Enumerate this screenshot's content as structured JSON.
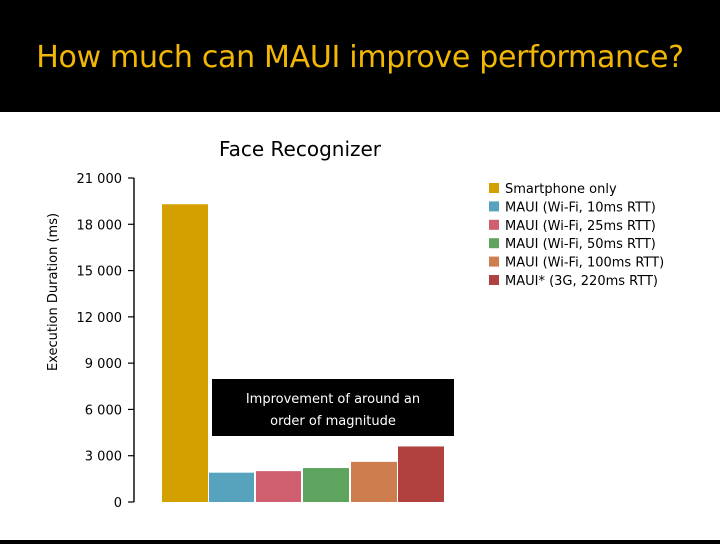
{
  "slide": {
    "title": "How much can MAUI improve performance?"
  },
  "colors": {
    "title": "#F2B705",
    "background": "#000000",
    "chart_background": "#ffffff",
    "callout_background": "#000000",
    "callout_text": "#ffffff"
  },
  "chart_data": {
    "type": "bar",
    "title": "Face Recognizer",
    "xlabel": "",
    "ylabel": "Execution Duration (ms)",
    "ylim": [
      0,
      21000
    ],
    "yticks": [
      0,
      3000,
      6000,
      9000,
      12000,
      15000,
      18000,
      21000
    ],
    "ytick_labels": [
      "0",
      "3 000",
      "6 000",
      "9 000",
      "12 000",
      "15 000",
      "18 000",
      "21 000"
    ],
    "grid": false,
    "legend_position": "right",
    "series": [
      {
        "name": "Smartphone only",
        "value": 19300,
        "color": "#D4A000"
      },
      {
        "name": "MAUI (Wi-Fi, 10ms RTT)",
        "value": 1900,
        "color": "#57A3BE"
      },
      {
        "name": "MAUI (Wi-Fi, 25ms RTT)",
        "value": 2000,
        "color": "#CF5E6E"
      },
      {
        "name": "MAUI (Wi-Fi, 50ms RTT)",
        "value": 2200,
        "color": "#5EA45E"
      },
      {
        "name": "MAUI (Wi-Fi, 100ms RTT)",
        "value": 2600,
        "color": "#CE7D4F"
      },
      {
        "name": "MAUI* (3G, 220ms RTT)",
        "value": 3600,
        "color": "#B0413E"
      }
    ],
    "annotation": "Improvement of around an order of magnitude"
  }
}
